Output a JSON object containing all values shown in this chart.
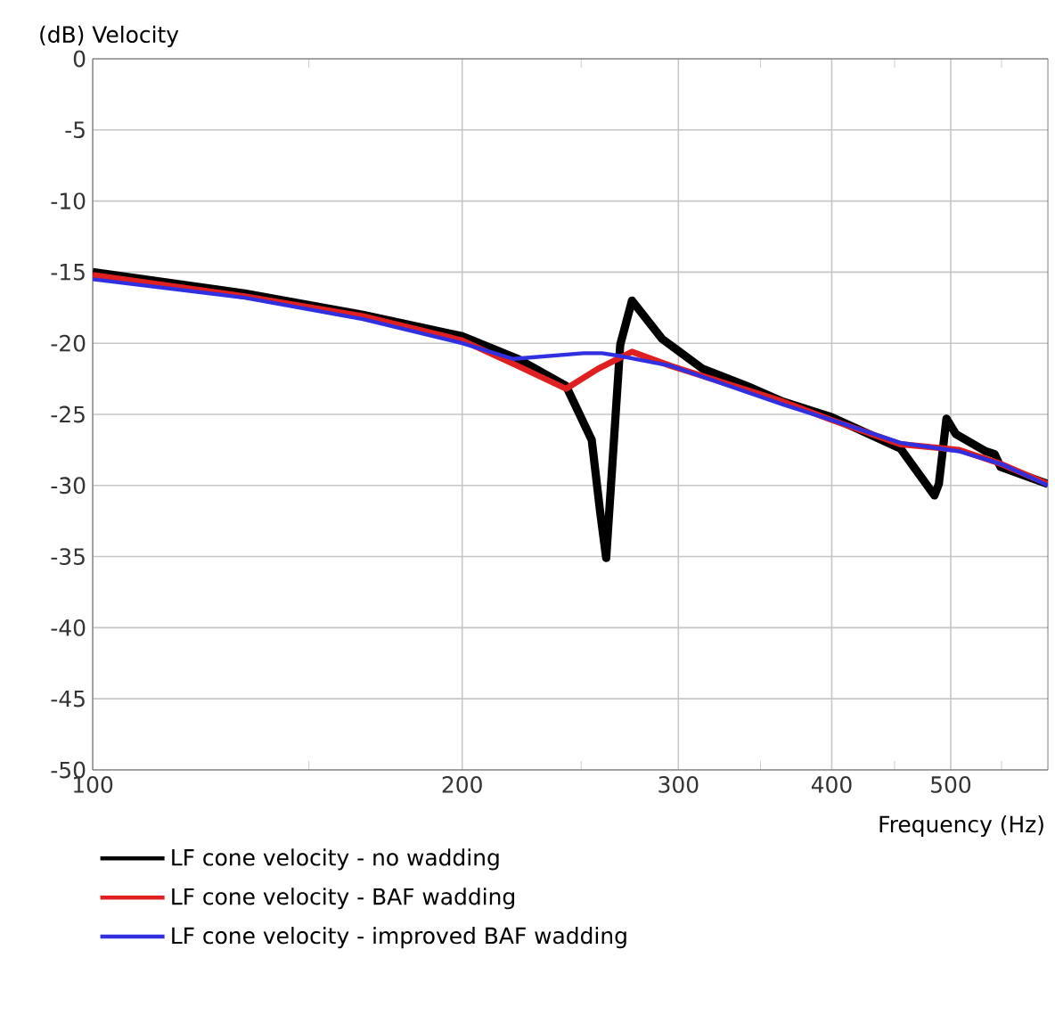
{
  "chart_data": {
    "type": "line",
    "ylabel": "(dB)  Velocity",
    "xlabel": "Frequency  (Hz)",
    "log": "x",
    "grid": true,
    "legend": "bottom",
    "line_style": "solid",
    "marker": "none",
    "xlim": [
      100,
      600
    ],
    "xticks": [
      100,
      {
        "value": 150,
        "label": null
      },
      200,
      {
        "value": 250,
        "label": null
      },
      300,
      {
        "value": 350,
        "label": null
      },
      400,
      {
        "value": 450,
        "label": null
      },
      500,
      {
        "value": 550,
        "label": null
      }
    ],
    "ylim": [
      -50,
      0
    ],
    "yticks": [
      0,
      -5,
      -10,
      -15,
      -20,
      -25,
      -30,
      -35,
      -40,
      -45,
      -50
    ],
    "series": [
      {
        "name": "LF cone velocity - no wadding",
        "color": "#000000",
        "x": [
          100,
          133,
          166,
          200,
          222,
          243,
          255,
          259,
          262,
          269,
          275,
          291,
          314,
          341,
          365,
          400,
          455,
          485,
          489,
          496,
          505,
          534,
          543,
          549,
          600
        ],
        "values": [
          -15.0,
          -16.5,
          -18.0,
          -19.5,
          -21.1,
          -23.0,
          -26.8,
          -31.8,
          -35.1,
          -20.1,
          -17.0,
          -19.7,
          -21.8,
          -23.0,
          -24.1,
          -25.2,
          -27.4,
          -30.7,
          -29.9,
          -25.3,
          -26.4,
          -27.6,
          -27.8,
          -28.7,
          -29.9
        ]
      },
      {
        "name": "LF cone velocity - BAF wadding",
        "color": "#e02020",
        "x": [
          100,
          133,
          166,
          200,
          222,
          243,
          258,
          275,
          296,
          365,
          400,
          455,
          508,
          550,
          600
        ],
        "values": [
          -15.2,
          -16.7,
          -18.1,
          -19.8,
          -21.6,
          -23.2,
          -21.8,
          -20.6,
          -21.6,
          -24.1,
          -25.4,
          -27.1,
          -27.5,
          -28.5,
          -29.9
        ]
      },
      {
        "name": "LF cone velocity - improved BAF wadding",
        "color": "#3030e0",
        "x": [
          100,
          133,
          166,
          200,
          220,
          251,
          260,
          269,
          296,
          365,
          400,
          455,
          508,
          550,
          600
        ],
        "values": [
          -15.5,
          -16.8,
          -18.3,
          -20.0,
          -21.1,
          -20.7,
          -20.7,
          -20.9,
          -21.6,
          -24.3,
          -25.4,
          -27.0,
          -27.6,
          -28.5,
          -30.0
        ]
      }
    ]
  }
}
